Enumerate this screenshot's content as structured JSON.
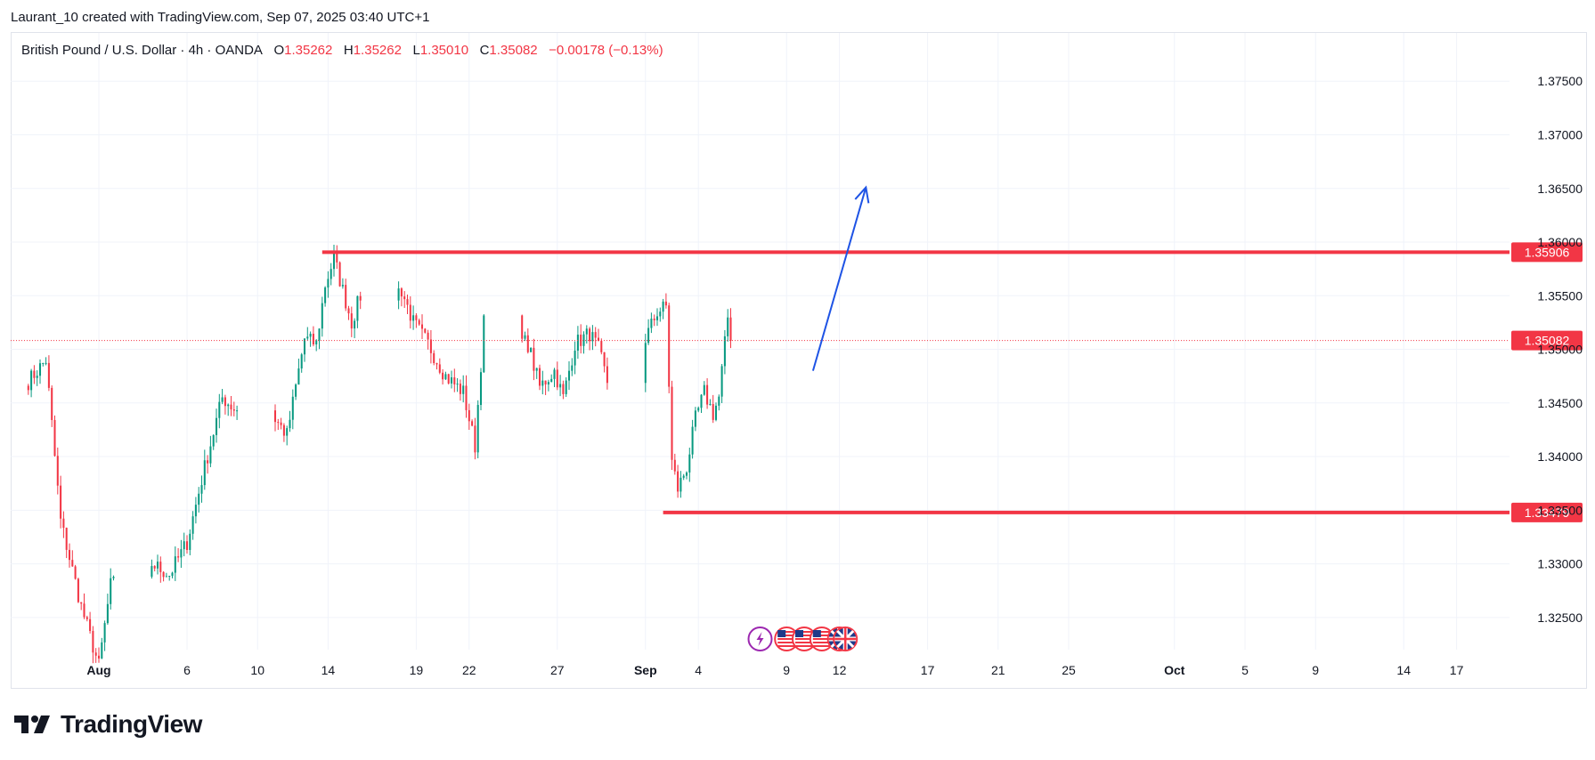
{
  "header": {
    "attribution": "Laurant_10 created with TradingView.com, Sep 07, 2025 03:40 UTC+1"
  },
  "legend": {
    "symbol": "British Pound / U.S. Dollar · 4h · OANDA",
    "o_label": "O",
    "o_value": "1.35262",
    "h_label": "H",
    "h_value": "1.35262",
    "l_label": "L",
    "l_value": "1.35010",
    "c_label": "C",
    "c_value": "1.35082",
    "change": "−0.00178 (−0.13%)"
  },
  "branding": {
    "name": "TradingView"
  },
  "colors": {
    "up": "#089981",
    "down": "#f23645",
    "arrow": "#1e53e5",
    "grid": "#f0f3fa",
    "axis_text": "#131722"
  },
  "chart_data": {
    "type": "candlestick",
    "title": "British Pound / U.S. Dollar · 4h · OANDA",
    "ylim": [
      1.322,
      1.3795
    ],
    "x_domain": [
      "2025-07-27",
      "2025-10-20"
    ],
    "y_ticks": [
      "1.37500",
      "1.37000",
      "1.36500",
      "1.36000",
      "1.35500",
      "1.35000",
      "1.34500",
      "1.34000",
      "1.33500",
      "1.33000",
      "1.32500"
    ],
    "x_ticks": [
      {
        "date": "2025-08-01",
        "label": "Aug",
        "bold": true
      },
      {
        "date": "2025-08-06",
        "label": "6"
      },
      {
        "date": "2025-08-10",
        "label": "10"
      },
      {
        "date": "2025-08-14",
        "label": "14"
      },
      {
        "date": "2025-08-19",
        "label": "19"
      },
      {
        "date": "2025-08-22",
        "label": "22"
      },
      {
        "date": "2025-08-27",
        "label": "27"
      },
      {
        "date": "2025-09-01",
        "label": "Sep",
        "bold": true
      },
      {
        "date": "2025-09-04",
        "label": "4"
      },
      {
        "date": "2025-09-09",
        "label": "9"
      },
      {
        "date": "2025-09-12",
        "label": "12"
      },
      {
        "date": "2025-09-17",
        "label": "17"
      },
      {
        "date": "2025-09-21",
        "label": "21"
      },
      {
        "date": "2025-09-25",
        "label": "25"
      },
      {
        "date": "2025-10-01",
        "label": "Oct",
        "bold": true
      },
      {
        "date": "2025-10-05",
        "label": "5"
      },
      {
        "date": "2025-10-09",
        "label": "9"
      },
      {
        "date": "2025-10-14",
        "label": "14"
      },
      {
        "date": "2025-10-17",
        "label": "17"
      }
    ],
    "anchors": [
      {
        "t": "2025-07-27T00:00",
        "p": 1.3495
      },
      {
        "t": "2025-07-28T00:00",
        "p": 1.347
      },
      {
        "t": "2025-07-29T00:00",
        "p": 1.349
      },
      {
        "t": "2025-07-29T20:00",
        "p": 1.334
      },
      {
        "t": "2025-07-31T00:00",
        "p": 1.326
      },
      {
        "t": "2025-08-01T00:00",
        "p": 1.3205
      },
      {
        "t": "2025-08-01T16:00",
        "p": 1.328
      },
      {
        "t": "2025-08-04T00:00",
        "p": 1.33
      },
      {
        "t": "2025-08-05T00:00",
        "p": 1.329
      },
      {
        "t": "2025-08-06T00:00",
        "p": 1.332
      },
      {
        "t": "2025-08-07T00:00",
        "p": 1.339
      },
      {
        "t": "2025-08-08T00:00",
        "p": 1.3455
      },
      {
        "t": "2025-08-08T16:00",
        "p": 1.3445
      },
      {
        "t": "2025-08-11T00:00",
        "p": 1.3435
      },
      {
        "t": "2025-08-11T16:00",
        "p": 1.342
      },
      {
        "t": "2025-08-12T16:00",
        "p": 1.351
      },
      {
        "t": "2025-08-13T08:00",
        "p": 1.3505
      },
      {
        "t": "2025-08-13T20:00",
        "p": 1.356
      },
      {
        "t": "2025-08-14T08:00",
        "p": 1.3585
      },
      {
        "t": "2025-08-14T20:00",
        "p": 1.3555
      },
      {
        "t": "2025-08-15T08:00",
        "p": 1.3525
      },
      {
        "t": "2025-08-15T20:00",
        "p": 1.355
      },
      {
        "t": "2025-08-18T04:00",
        "p": 1.3555
      },
      {
        "t": "2025-08-18T20:00",
        "p": 1.3525
      },
      {
        "t": "2025-08-19T16:00",
        "p": 1.3505
      },
      {
        "t": "2025-08-20T16:00",
        "p": 1.3475
      },
      {
        "t": "2025-08-21T16:00",
        "p": 1.346
      },
      {
        "t": "2025-08-22T08:00",
        "p": 1.341
      },
      {
        "t": "2025-08-22T20:00",
        "p": 1.3525
      },
      {
        "t": "2025-08-25T08:00",
        "p": 1.3505
      },
      {
        "t": "2025-08-26T00:00",
        "p": 1.3465
      },
      {
        "t": "2025-08-26T20:00",
        "p": 1.348
      },
      {
        "t": "2025-08-27T08:00",
        "p": 1.3455
      },
      {
        "t": "2025-08-28T00:00",
        "p": 1.3505
      },
      {
        "t": "2025-08-28T20:00",
        "p": 1.3515
      },
      {
        "t": "2025-08-29T08:00",
        "p": 1.35
      },
      {
        "t": "2025-08-29T20:00",
        "p": 1.347
      },
      {
        "t": "2025-09-01T00:00",
        "p": 1.351
      },
      {
        "t": "2025-09-01T16:00",
        "p": 1.3535
      },
      {
        "t": "2025-09-02T04:00",
        "p": 1.354
      },
      {
        "t": "2025-09-02T12:00",
        "p": 1.3395
      },
      {
        "t": "2025-09-02T20:00",
        "p": 1.337
      },
      {
        "t": "2025-09-03T08:00",
        "p": 1.339
      },
      {
        "t": "2025-09-03T20:00",
        "p": 1.3435
      },
      {
        "t": "2025-09-04T08:00",
        "p": 1.346
      },
      {
        "t": "2025-09-04T20:00",
        "p": 1.344
      },
      {
        "t": "2025-09-05T04:00",
        "p": 1.3455
      },
      {
        "t": "2025-09-05T16:00",
        "p": 1.353
      },
      {
        "t": "2025-09-05T20:00",
        "p": 1.3508
      }
    ],
    "levels": [
      {
        "value": 1.35906,
        "label": "1.35906",
        "from": "2025-08-13T16:00"
      },
      {
        "value": 1.33479,
        "label": "1.33479",
        "from": "2025-09-02T00:00"
      }
    ],
    "current_price": {
      "value": 1.35082,
      "label": "1.35082"
    },
    "arrow": {
      "from": {
        "t": "2025-09-10T12:00",
        "p": 1.348
      },
      "to": {
        "t": "2025-09-13T12:00",
        "p": 1.3651
      }
    },
    "events": [
      {
        "date": "2025-09-07T12:00",
        "icon": "lightning-icon",
        "color": "#9c27b0"
      },
      {
        "date": "2025-09-09T00:00",
        "icon": "us-flag-icon"
      },
      {
        "date": "2025-09-10T00:00",
        "icon": "us-flag-icon"
      },
      {
        "date": "2025-09-11T00:00",
        "icon": "us-flag-icon"
      },
      {
        "date": "2025-09-12T00:00",
        "icon": "uk-flag-icon"
      },
      {
        "date": "2025-09-12T08:00",
        "icon": "uk-flag-icon"
      }
    ]
  }
}
